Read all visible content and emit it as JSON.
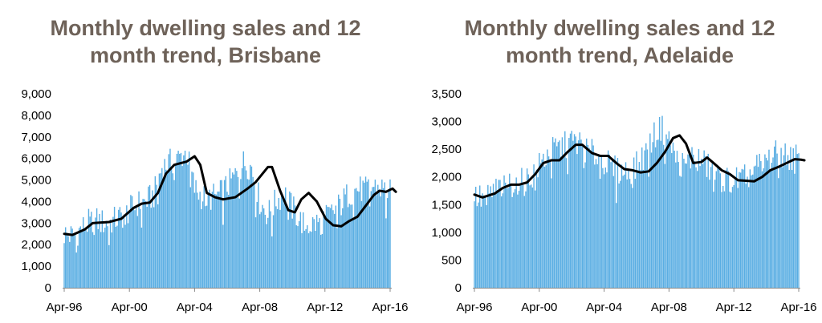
{
  "chart_data": [
    {
      "type": "bar",
      "title_line1": "Monthly dwelling sales and 12",
      "title_line2": "month trend, Brisbane",
      "x_tick_labels": [
        "Apr-96",
        "Apr-00",
        "Apr-04",
        "Apr-08",
        "Apr-12",
        "Apr-16"
      ],
      "y_tick_labels": [
        "0",
        "1,000",
        "2,000",
        "3,000",
        "4,000",
        "5,000",
        "6,000",
        "7,000",
        "8,000",
        "9,000"
      ],
      "ylim": [
        0,
        9000
      ],
      "xlim": [
        1996.25,
        2016.25
      ],
      "grid": false,
      "bar_color": "#5aaee3",
      "trend_color": "#000000",
      "series": [
        {
          "type": "bar",
          "approx_monthly_sales": [
            [
              1996.25,
              2500
            ],
            [
              1996.75,
              2400
            ],
            [
              1997.25,
              2700
            ],
            [
              1997.75,
              3000
            ],
            [
              1998.25,
              3100
            ],
            [
              1998.75,
              3000
            ],
            [
              1999.25,
              3100
            ],
            [
              1999.75,
              3300
            ],
            [
              2000.25,
              3600
            ],
            [
              2000.75,
              3900
            ],
            [
              2001.25,
              4000
            ],
            [
              2001.75,
              4300
            ],
            [
              2002.25,
              5600
            ],
            [
              2002.75,
              5800
            ],
            [
              2003.25,
              6000
            ],
            [
              2003.75,
              6300
            ],
            [
              2004.25,
              4600
            ],
            [
              2004.75,
              4200
            ],
            [
              2005.25,
              4200
            ],
            [
              2005.75,
              4300
            ],
            [
              2006.25,
              4700
            ],
            [
              2006.75,
              5200
            ],
            [
              2007.25,
              5800
            ],
            [
              2007.75,
              5600
            ],
            [
              2008.25,
              4000
            ],
            [
              2008.75,
              3400
            ],
            [
              2009.25,
              4000
            ],
            [
              2009.75,
              4400
            ],
            [
              2010.25,
              3700
            ],
            [
              2010.75,
              3100
            ],
            [
              2011.25,
              2900
            ],
            [
              2011.75,
              3000
            ],
            [
              2012.25,
              3200
            ],
            [
              2012.75,
              3500
            ],
            [
              2013.25,
              3900
            ],
            [
              2013.75,
              4400
            ],
            [
              2014.25,
              4600
            ],
            [
              2014.75,
              4500
            ],
            [
              2015.25,
              4700
            ],
            [
              2015.75,
              4600
            ],
            [
              2016.25,
              4400
            ]
          ]
        },
        {
          "type": "line",
          "trend_12_month": [
            [
              1996.25,
              2500
            ],
            [
              1996.75,
              2450
            ],
            [
              1997.5,
              2700
            ],
            [
              1998,
              3000
            ],
            [
              1999,
              3050
            ],
            [
              1999.75,
              3200
            ],
            [
              2000.5,
              3700
            ],
            [
              2001,
              3900
            ],
            [
              2001.5,
              3950
            ],
            [
              2002,
              4400
            ],
            [
              2002.5,
              5300
            ],
            [
              2003,
              5700
            ],
            [
              2003.75,
              5850
            ],
            [
              2004.25,
              6100
            ],
            [
              2004.6,
              5700
            ],
            [
              2005,
              4400
            ],
            [
              2005.5,
              4200
            ],
            [
              2006,
              4100
            ],
            [
              2006.75,
              4200
            ],
            [
              2007.5,
              4600
            ],
            [
              2008,
              4900
            ],
            [
              2008.75,
              5600
            ],
            [
              2009,
              5600
            ],
            [
              2009.5,
              4500
            ],
            [
              2010,
              3600
            ],
            [
              2010.4,
              3500
            ],
            [
              2010.8,
              4100
            ],
            [
              2011.25,
              4400
            ],
            [
              2011.75,
              4000
            ],
            [
              2012.3,
              3200
            ],
            [
              2012.75,
              2900
            ],
            [
              2013.25,
              2850
            ],
            [
              2013.75,
              3100
            ],
            [
              2014.25,
              3300
            ],
            [
              2014.75,
              3800
            ],
            [
              2015.25,
              4300
            ],
            [
              2015.6,
              4500
            ],
            [
              2016,
              4450
            ],
            [
              2016.25,
              4550
            ],
            [
              2016.4,
              4600
            ],
            [
              2016.6,
              4450
            ]
          ]
        }
      ]
    },
    {
      "type": "bar",
      "title_line1": "Monthly dwelling sales and 12",
      "title_line2": "month trend, Adelaide",
      "x_tick_labels": [
        "Apr-96",
        "Apr-00",
        "Apr-04",
        "Apr-08",
        "Apr-12",
        "Apr-16"
      ],
      "y_tick_labels": [
        "0",
        "500",
        "1,000",
        "1,500",
        "2,000",
        "2,500",
        "3,000",
        "3,500"
      ],
      "ylim": [
        0,
        3500
      ],
      "xlim": [
        1996.25,
        2016.25
      ],
      "grid": false,
      "bar_color": "#5aaee3",
      "trend_color": "#000000",
      "series": [
        {
          "type": "bar",
          "approx_monthly_sales": [
            [
              1996.25,
              1650
            ],
            [
              1996.75,
              1600
            ],
            [
              1997.25,
              1700
            ],
            [
              1997.75,
              1800
            ],
            [
              1998.25,
              1850
            ],
            [
              1998.75,
              1900
            ],
            [
              1999.25,
              1900
            ],
            [
              1999.75,
              2000
            ],
            [
              2000.25,
              2200
            ],
            [
              2000.75,
              2400
            ],
            [
              2001.25,
              2500
            ],
            [
              2001.75,
              2550
            ],
            [
              2002.25,
              2650
            ],
            [
              2002.75,
              2600
            ],
            [
              2003.25,
              2450
            ],
            [
              2003.75,
              2400
            ],
            [
              2004.25,
              2300
            ],
            [
              2004.75,
              2150
            ],
            [
              2005.25,
              2100
            ],
            [
              2005.75,
              2100
            ],
            [
              2006.25,
              2200
            ],
            [
              2006.75,
              2400
            ],
            [
              2007.25,
              2700
            ],
            [
              2007.75,
              2900
            ],
            [
              2008.25,
              2650
            ],
            [
              2008.75,
              2300
            ],
            [
              2009.25,
              2200
            ],
            [
              2009.75,
              2400
            ],
            [
              2010.25,
              2300
            ],
            [
              2010.75,
              2150
            ],
            [
              2011.25,
              2000
            ],
            [
              2011.75,
              1950
            ],
            [
              2012.25,
              1950
            ],
            [
              2012.75,
              1950
            ],
            [
              2013.25,
              2050
            ],
            [
              2013.75,
              2200
            ],
            [
              2014.25,
              2300
            ],
            [
              2014.75,
              2400
            ],
            [
              2015.25,
              2400
            ],
            [
              2015.75,
              2350
            ],
            [
              2016.25,
              2350
            ]
          ]
        },
        {
          "type": "line",
          "trend_12_month": [
            [
              1996.25,
              1680
            ],
            [
              1996.75,
              1630
            ],
            [
              1997.5,
              1700
            ],
            [
              1998,
              1800
            ],
            [
              1998.5,
              1860
            ],
            [
              1999,
              1860
            ],
            [
              1999.5,
              1900
            ],
            [
              2000,
              2050
            ],
            [
              2000.5,
              2250
            ],
            [
              2001,
              2300
            ],
            [
              2001.5,
              2300
            ],
            [
              2002,
              2450
            ],
            [
              2002.5,
              2580
            ],
            [
              2002.9,
              2580
            ],
            [
              2003.5,
              2430
            ],
            [
              2004,
              2380
            ],
            [
              2004.5,
              2380
            ],
            [
              2005,
              2250
            ],
            [
              2005.5,
              2140
            ],
            [
              2006,
              2120
            ],
            [
              2006.5,
              2080
            ],
            [
              2007,
              2100
            ],
            [
              2007.5,
              2250
            ],
            [
              2008,
              2450
            ],
            [
              2008.5,
              2700
            ],
            [
              2008.9,
              2750
            ],
            [
              2009.3,
              2600
            ],
            [
              2009.75,
              2250
            ],
            [
              2010.25,
              2270
            ],
            [
              2010.6,
              2350
            ],
            [
              2011,
              2250
            ],
            [
              2011.5,
              2120
            ],
            [
              2012,
              2050
            ],
            [
              2012.5,
              1940
            ],
            [
              2013,
              1930
            ],
            [
              2013.5,
              1920
            ],
            [
              2014,
              2000
            ],
            [
              2014.5,
              2120
            ],
            [
              2015,
              2180
            ],
            [
              2015.5,
              2250
            ],
            [
              2016,
              2320
            ],
            [
              2016.4,
              2310
            ],
            [
              2016.6,
              2300
            ]
          ]
        }
      ]
    }
  ]
}
